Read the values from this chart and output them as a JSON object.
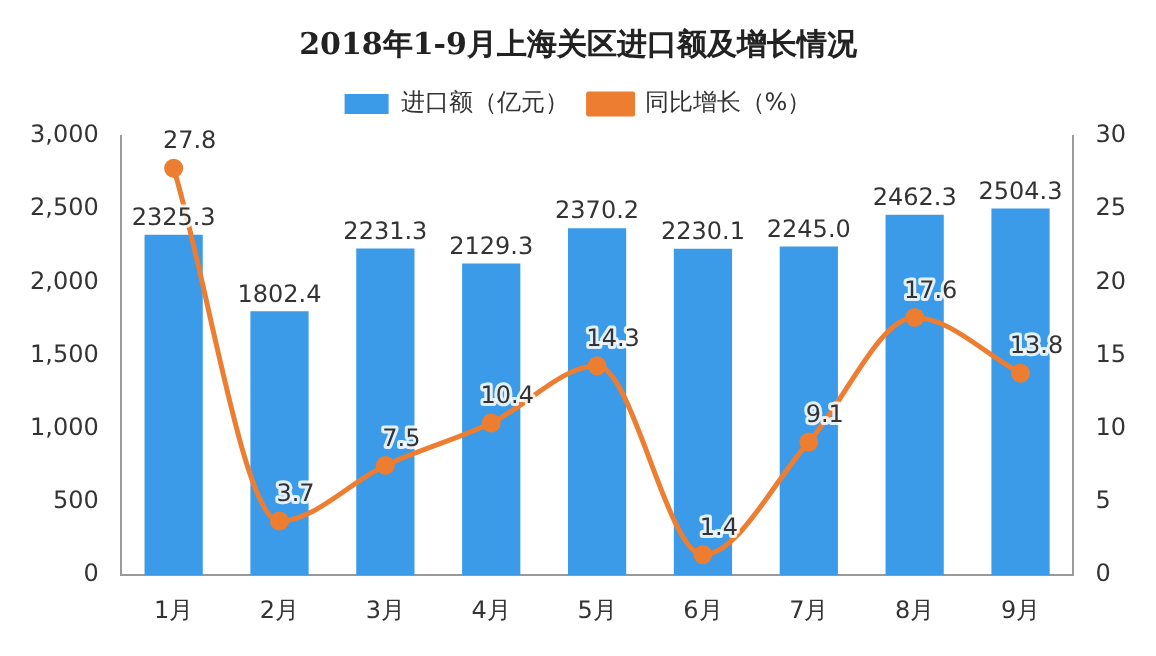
{
  "chart_data": {
    "type": "bar",
    "title": "2018年1-9月上海关区进口额及增长情况",
    "categories": [
      "1月",
      "2月",
      "3月",
      "4月",
      "5月",
      "6月",
      "7月",
      "8月",
      "9月"
    ],
    "series": [
      {
        "name": "进口额（亿元）",
        "color": "#3c9be8",
        "values": [
          2325.3,
          1802.4,
          2231.3,
          2129.3,
          2370.2,
          2230.1,
          2245.0,
          2462.3,
          2504.3
        ],
        "value_labels": [
          "2325.3",
          "1802.4",
          "2231.3",
          "2129.3",
          "2370.2",
          "2230.1",
          "2245.0",
          "2462.3",
          "2504.3"
        ]
      },
      {
        "name": "同比增长（%）",
        "type": "line",
        "axis": "y2",
        "color": "#ed7d31",
        "marker": "circle",
        "line_style": "solid",
        "values": [
          27.8,
          3.7,
          7.5,
          10.4,
          14.3,
          1.4,
          9.1,
          17.6,
          13.8
        ],
        "value_labels": [
          "27.8",
          "3.7",
          "7.5",
          "10.4",
          "14.3",
          "1.4",
          "9.1",
          "17.6",
          "13.8"
        ]
      }
    ],
    "ylim": [
      0,
      3000
    ],
    "yticks": [
      0,
      500,
      {
        "value": 1000,
        "label": "1,000"
      },
      {
        "value": 1500,
        "label": "1,500"
      },
      {
        "value": 2000,
        "label": "2,000"
      },
      {
        "value": 2500,
        "label": "2,500"
      },
      {
        "value": 3000,
        "label": "3,000"
      }
    ],
    "y2lim": [
      0,
      30
    ],
    "y2ticks": [
      0,
      5,
      10,
      15,
      20,
      25,
      30
    ],
    "grid": false,
    "legend": "top"
  }
}
